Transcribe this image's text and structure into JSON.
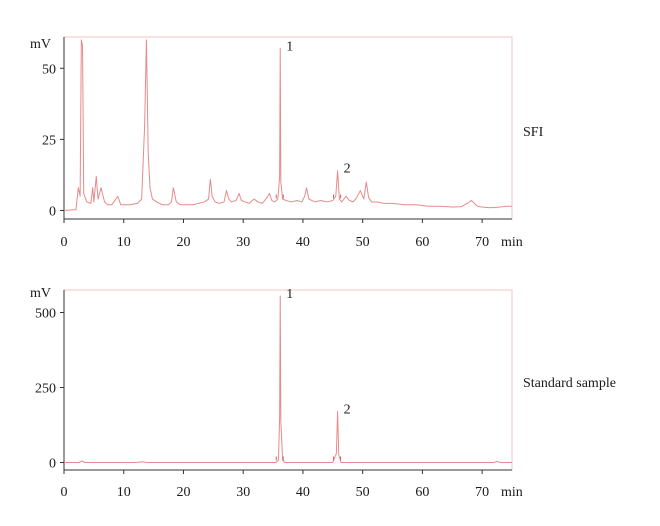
{
  "chart_data": [
    {
      "type": "line",
      "title": "",
      "series_label": "SFI",
      "xlabel": "min",
      "ylabel": "mV",
      "xlim": [
        0,
        75
      ],
      "ylim": [
        -3,
        61
      ],
      "x_ticks": [
        "0",
        "10",
        "20",
        "30",
        "40",
        "50",
        "60",
        "70"
      ],
      "y_ticks": [
        "0",
        "25",
        "50"
      ],
      "peak_labels": [
        {
          "label": "1",
          "x": 36.2,
          "y": 57
        },
        {
          "label": "2",
          "x": 45.8,
          "y": 14
        }
      ],
      "series": [
        {
          "x": [
            0,
            2.0,
            2.4,
            2.7,
            2.9,
            3.1,
            3.3,
            3.8,
            4.5,
            4.8,
            5.0,
            5.4,
            5.7,
            6.2,
            6.8,
            7.3,
            8,
            9.0,
            9.5,
            10.0,
            11,
            12.3,
            13.0,
            13.5,
            13.8,
            14.1,
            14.4,
            14.8,
            15.5,
            16.5,
            17.5,
            18.0,
            18.3,
            18.8,
            19.5,
            20.5,
            21.5,
            22.5,
            23.5,
            24.2,
            24.5,
            24.8,
            25.3,
            26,
            26.8,
            27.2,
            27.6,
            28,
            28.8,
            29.3,
            29.7,
            30.3,
            31,
            31.8,
            32.5,
            33.2,
            33.8,
            34.4,
            34.8,
            35.3,
            35.8,
            36.1,
            36.2,
            36.3,
            36.6,
            37.2,
            38,
            39,
            39.8,
            40.3,
            40.6,
            41,
            42,
            43,
            44,
            45,
            45.5,
            45.8,
            46.1,
            46.5,
            47.2,
            47.8,
            48.4,
            49,
            49.6,
            50.2,
            50.6,
            51.0,
            51.5,
            52.5,
            53.5,
            55,
            57,
            59,
            61,
            63,
            65,
            66.5,
            67.5,
            68.2,
            68.7,
            69.2,
            70,
            71,
            72,
            73,
            74,
            75
          ],
          "y": [
            0,
            0.3,
            8,
            5,
            60,
            58,
            6,
            3,
            2.5,
            8,
            3,
            12,
            4,
            8,
            3,
            2,
            2,
            5,
            2,
            2,
            2,
            2.5,
            4,
            30,
            60,
            20,
            8,
            4,
            3,
            2,
            2,
            3,
            8,
            3,
            2,
            2,
            2,
            2.5,
            3,
            4,
            11,
            5,
            3,
            2.5,
            3,
            7,
            4,
            3,
            3.5,
            6,
            3.5,
            3,
            2.5,
            4,
            3,
            2.5,
            4,
            6,
            3.5,
            3,
            4,
            12,
            57,
            10,
            4,
            3.5,
            3,
            3.5,
            3,
            5,
            8,
            4,
            3,
            3.5,
            3,
            3.5,
            5,
            14,
            4,
            3,
            5,
            3.5,
            3,
            4.5,
            7,
            4,
            10,
            4.5,
            3,
            3,
            2.5,
            2.5,
            2,
            2,
            1.5,
            1.5,
            1.2,
            1.3,
            2.5,
            3.5,
            2.5,
            1.5,
            1.2,
            1,
            1,
            1.2,
            1.5,
            1.5
          ]
        }
      ]
    },
    {
      "type": "line",
      "title": "",
      "series_label": "Standard sample",
      "xlabel": "min",
      "ylabel": "mV",
      "xlim": [
        0,
        75
      ],
      "ylim": [
        -25,
        575
      ],
      "x_ticks": [
        "0",
        "10",
        "20",
        "30",
        "40",
        "50",
        "60",
        "70"
      ],
      "y_ticks": [
        "0",
        "250",
        "500"
      ],
      "peak_labels": [
        {
          "label": "1",
          "x": 36.2,
          "y": 555
        },
        {
          "label": "2",
          "x": 45.8,
          "y": 170
        }
      ],
      "series": [
        {
          "x": [
            0,
            2.5,
            3,
            3.5,
            12,
            13,
            14,
            20,
            30,
            35.5,
            35.9,
            36.1,
            36.2,
            36.3,
            36.6,
            37,
            40,
            45,
            45.6,
            45.8,
            46.0,
            46.4,
            50,
            60,
            70,
            72,
            72.5,
            73,
            75
          ],
          "y": [
            0,
            0,
            5,
            0,
            0,
            2,
            0,
            0,
            0,
            0,
            8,
            150,
            555,
            140,
            8,
            0,
            0,
            0,
            30,
            170,
            25,
            0,
            0,
            0,
            0,
            0,
            4,
            0,
            0
          ]
        }
      ]
    }
  ]
}
